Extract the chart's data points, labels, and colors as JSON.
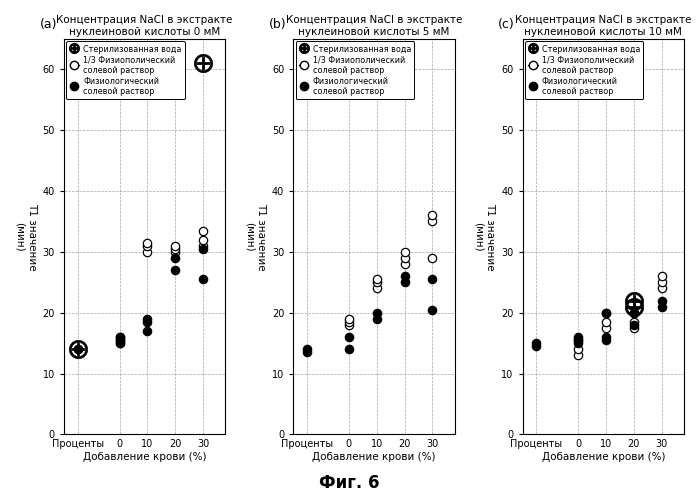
{
  "title_a": "Концентрация NaCl в экстракте\nнуклеиновой кислоты 0 мМ",
  "title_b": "Концентрация NaCl в экстракте\nнуклеиновой кислоты 5 мМ",
  "title_c": "Концентрация NaCl в экстракте\nнуклеиновой кислоты 10 мМ",
  "label_a": "(a)",
  "label_b": "(b)",
  "label_c": "(c)",
  "xlabel": "Добавление крови (%)",
  "ylabel_line1": "Т1 значение",
  "ylabel_line2": "(мин)",
  "fig_label": "Фиг. 6",
  "xlim": [
    -1.0,
    4.8
  ],
  "ylim": [
    0,
    65
  ],
  "yticks": [
    0,
    10,
    20,
    30,
    40,
    50,
    60
  ],
  "xtick_labels": [
    "Проценты",
    "0",
    "10",
    "20",
    "30"
  ],
  "xtick_pos": [
    -0.5,
    1,
    2,
    3,
    4
  ],
  "legend_label_cross": "Стерилизованная вода",
  "legend_label_open": "1/3 Физиополический\nсолевой раствор",
  "legend_label_filled": "Физиологический\nсолевой раствор",
  "panel_a": {
    "cross": {
      "x": [
        -0.5,
        4
      ],
      "y": [
        14,
        61
      ]
    },
    "open": {
      "x": [
        1,
        1,
        1,
        2,
        2,
        2,
        3,
        3,
        3,
        4,
        4,
        4
      ],
      "y": [
        15.0,
        15.5,
        16.0,
        30.0,
        31.0,
        31.5,
        30.0,
        30.5,
        31.0,
        31.0,
        32.0,
        33.5
      ]
    },
    "filled": {
      "x": [
        -0.5,
        -0.5,
        1,
        1,
        1,
        2,
        2,
        2,
        3,
        3,
        4,
        4
      ],
      "y": [
        14.0,
        14.0,
        15.0,
        15.5,
        16.0,
        17.0,
        18.5,
        19.0,
        27.0,
        29.0,
        25.5,
        30.5
      ]
    }
  },
  "panel_b": {
    "cross": {
      "x": [],
      "y": []
    },
    "open": {
      "x": [
        1,
        1,
        1,
        2,
        2,
        2,
        3,
        3,
        3,
        4,
        4,
        4
      ],
      "y": [
        18.0,
        18.5,
        19.0,
        24.0,
        25.0,
        25.5,
        28.0,
        29.0,
        30.0,
        29.0,
        35.0,
        36.0
      ]
    },
    "filled": {
      "x": [
        -0.5,
        -0.5,
        1,
        1,
        2,
        2,
        3,
        3,
        4,
        4
      ],
      "y": [
        13.5,
        14.0,
        14.0,
        16.0,
        19.0,
        20.0,
        25.0,
        26.0,
        20.5,
        25.5
      ]
    }
  },
  "panel_c": {
    "cross": {
      "x": [
        3,
        3
      ],
      "y": [
        21.0,
        22.0
      ]
    },
    "open": {
      "x": [
        1,
        1,
        1,
        2,
        2,
        2,
        3,
        3,
        3,
        4,
        4,
        4
      ],
      "y": [
        13.0,
        14.0,
        15.5,
        17.5,
        18.5,
        20.0,
        17.5,
        18.5,
        20.0,
        24.0,
        25.0,
        26.0
      ]
    },
    "filled": {
      "x": [
        -0.5,
        -0.5,
        1,
        1,
        1,
        2,
        2,
        2,
        3,
        3,
        4,
        4
      ],
      "y": [
        14.5,
        15.0,
        15.0,
        15.5,
        16.0,
        15.5,
        16.0,
        20.0,
        18.0,
        20.0,
        21.0,
        22.0
      ]
    }
  }
}
